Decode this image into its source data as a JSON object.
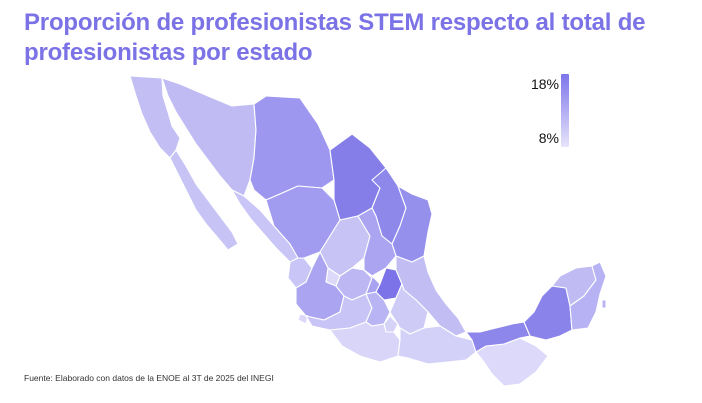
{
  "title": "Proporción de profesionistas STEM respecto al total de profesionistas por estado",
  "legend": {
    "max_label": "18%",
    "min_label": "8%",
    "color_high": "#7d75ea",
    "color_low": "#e6e4fb"
  },
  "source": "Fuente: Elaborado con datos de la ENOE al 3T de 2025 del INEGI"
}
